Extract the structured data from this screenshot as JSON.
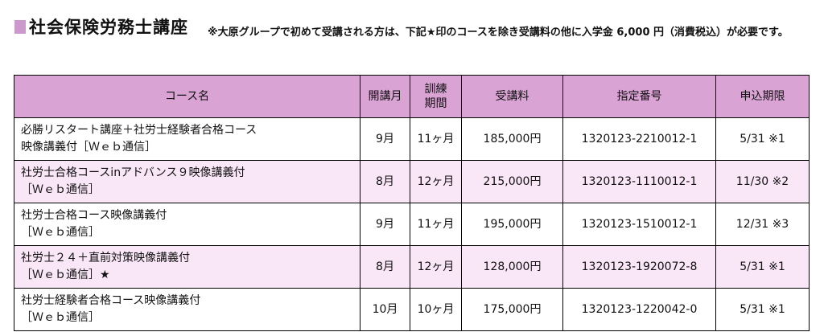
{
  "header": {
    "title": "社会保険労務士講座",
    "note": "※大原グループで初めて受講される方は、下記★印のコースを除き受講料の他に入学金 6,000 円（消費税込）が必要です。"
  },
  "table": {
    "columns": [
      "コース名",
      "開講月",
      "訓練期間",
      "受講料",
      "指定番号",
      "申込期限"
    ],
    "column_training_lines": [
      "訓練",
      "期間"
    ],
    "rows": [
      {
        "course_lines": [
          "必勝リスタート講座＋社労士経験者合格コース",
          "映像講義付［Ｗｅｂ通信］"
        ],
        "start": "9月",
        "period": "11ヶ月",
        "fee": "185,000円",
        "number": "1320123-2210012-1",
        "deadline": "5/31 ※1"
      },
      {
        "course_lines": [
          "社労士合格コースinアドバンス９映像講義付",
          "［Ｗｅｂ通信］"
        ],
        "start": "8月",
        "period": "12ヶ月",
        "fee": "215,000円",
        "number": "1320123-1110012-1",
        "deadline": "11/30 ※2"
      },
      {
        "course_lines": [
          "社労士合格コース映像講義付",
          "［Ｗｅｂ通信］"
        ],
        "start": "9月",
        "period": "11ヶ月",
        "fee": "195,000円",
        "number": "1320123-1510012-1",
        "deadline": "12/31 ※3"
      },
      {
        "course_lines": [
          "社労士２４＋直前対策映像講義付",
          "［Ｗｅｂ通信］★"
        ],
        "start": "8月",
        "period": "12ヶ月",
        "fee": "128,000円",
        "number": "1320123-1920072-8",
        "deadline": "5/31 ※1"
      },
      {
        "course_lines": [
          "社労士経験者合格コース映像講義付",
          "［Ｗｅｂ通信］"
        ],
        "start": "10月",
        "period": "10ヶ月",
        "fee": "175,000円",
        "number": "1320123-1220042-0",
        "deadline": "5/31 ※1"
      }
    ]
  }
}
